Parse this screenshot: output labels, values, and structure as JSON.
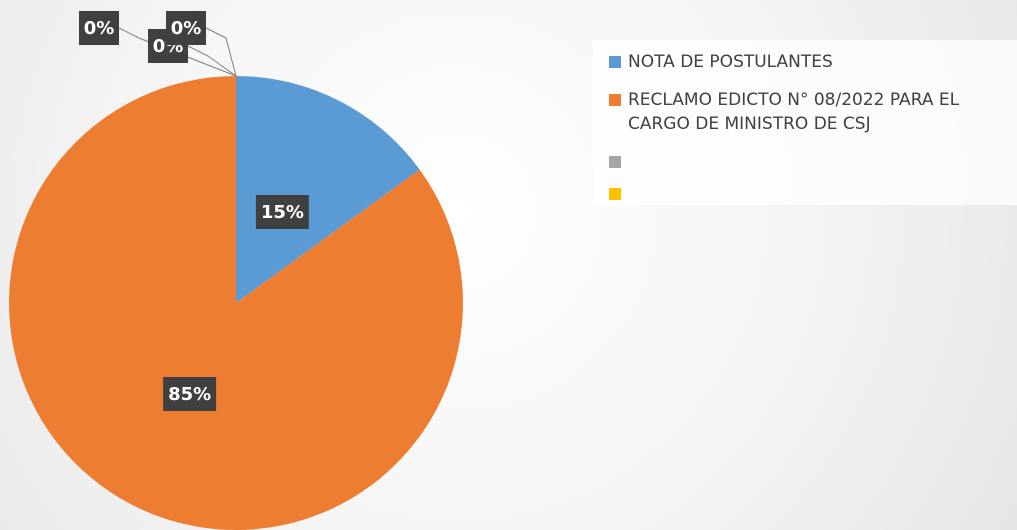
{
  "chart_data": {
    "type": "pie",
    "categories": [
      "NOTA DE POSTULANTES",
      "RECLAMO EDICTO N° 08/2022 PARA EL CARGO DE MINISTRO DE CSJ",
      null,
      null,
      null
    ],
    "values": [
      15,
      85,
      0,
      0,
      0
    ],
    "value_labels": [
      "15%",
      "85%",
      "0%",
      "0%",
      "0%"
    ],
    "colors": [
      "#5b9bd5",
      "#ed7d31",
      "#a5a5a5",
      "#ffc000",
      "#4472c4"
    ],
    "legend": "right"
  }
}
